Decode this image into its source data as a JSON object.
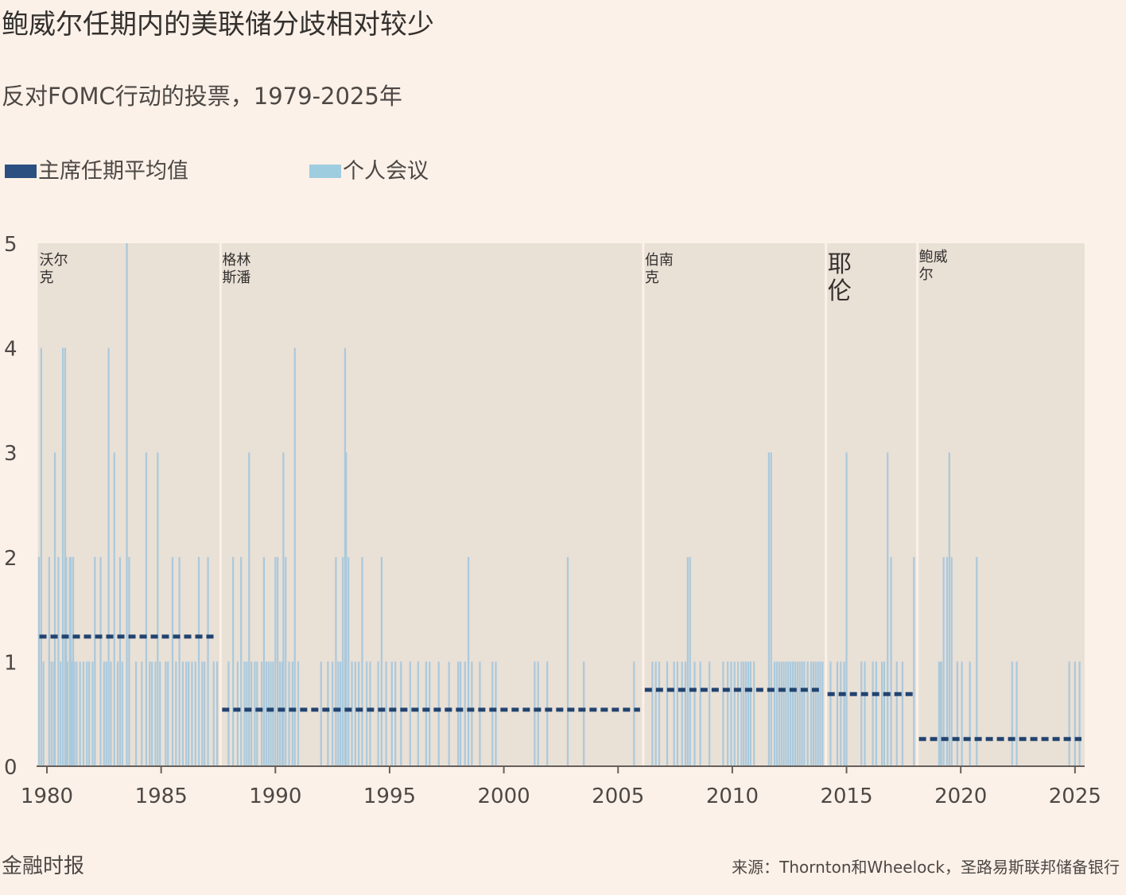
{
  "title": "鲍威尔任期内的美联储分歧相对较少",
  "subtitle": "反对FOMC行动的投票，1979-2025年",
  "legend": {
    "average": "主席任期平均值",
    "individual": "个人会议"
  },
  "footer": {
    "publisher": "金融时报",
    "source": "来源：Thornton和Wheelock，圣路易斯联邦储备银行"
  },
  "colors": {
    "background": "#fcf1e8",
    "plot_band": "#e9e0d6",
    "meeting_bar": "#aac9dc",
    "average_line": "#22436f",
    "legend_meeting": "#9fcde0",
    "legend_average": "#2b4f80"
  },
  "chart_data": {
    "type": "bar",
    "xlabel": "",
    "ylabel": "",
    "xlim": [
      1979.6,
      2025.5
    ],
    "ylim": [
      0,
      5
    ],
    "x_ticks": [
      1980,
      1985,
      1990,
      1995,
      2000,
      2005,
      2010,
      2015,
      2020,
      2025
    ],
    "y_ticks": [
      0,
      1,
      2,
      3,
      4,
      5
    ],
    "grid": false,
    "legend_position": "top-left",
    "chair_terms": [
      {
        "name": "沃尔克",
        "label_lines": [
          "沃尔",
          "克"
        ],
        "start": 1979.6,
        "end": 1987.6,
        "average": 1.24
      },
      {
        "name": "格林斯潘",
        "label_lines": [
          "格林",
          "斯潘"
        ],
        "start": 1987.6,
        "end": 2006.1,
        "average": 0.54
      },
      {
        "name": "伯南克",
        "label_lines": [
          "伯南",
          "克"
        ],
        "start": 2006.1,
        "end": 2014.1,
        "average": 0.73
      },
      {
        "name": "耶伦",
        "label_lines": [
          "耶",
          "伦"
        ],
        "start": 2014.1,
        "end": 2018.1,
        "average": 0.69
      },
      {
        "name": "鲍威尔",
        "label_lines": [
          "鲍威",
          "尔"
        ],
        "start": 2018.1,
        "end": 2025.5,
        "average": 0.26
      }
    ],
    "meetings": [
      [
        1979.65,
        2
      ],
      [
        1979.75,
        4
      ],
      [
        1979.85,
        1
      ],
      [
        1980.1,
        2
      ],
      [
        1980.2,
        1
      ],
      [
        1980.3,
        1
      ],
      [
        1980.35,
        3
      ],
      [
        1980.5,
        2
      ],
      [
        1980.6,
        1
      ],
      [
        1980.7,
        4
      ],
      [
        1980.8,
        4
      ],
      [
        1980.85,
        2
      ],
      [
        1980.9,
        1
      ],
      [
        1981.0,
        2
      ],
      [
        1981.05,
        2
      ],
      [
        1981.1,
        1
      ],
      [
        1981.15,
        2
      ],
      [
        1981.2,
        1
      ],
      [
        1981.3,
        1
      ],
      [
        1981.45,
        1
      ],
      [
        1981.6,
        1
      ],
      [
        1981.75,
        1
      ],
      [
        1981.85,
        1
      ],
      [
        1982.0,
        1
      ],
      [
        1982.1,
        2
      ],
      [
        1982.35,
        2
      ],
      [
        1982.5,
        1
      ],
      [
        1982.6,
        1
      ],
      [
        1982.7,
        4
      ],
      [
        1982.8,
        1
      ],
      [
        1982.95,
        3
      ],
      [
        1983.1,
        1
      ],
      [
        1983.2,
        2
      ],
      [
        1983.3,
        1
      ],
      [
        1983.5,
        5
      ],
      [
        1983.6,
        2
      ],
      [
        1983.9,
        1
      ],
      [
        1984.15,
        1
      ],
      [
        1984.35,
        3
      ],
      [
        1984.5,
        1
      ],
      [
        1984.6,
        1
      ],
      [
        1984.75,
        1
      ],
      [
        1984.85,
        3
      ],
      [
        1984.95,
        1
      ],
      [
        1985.2,
        1
      ],
      [
        1985.3,
        1
      ],
      [
        1985.5,
        2
      ],
      [
        1985.65,
        1
      ],
      [
        1985.8,
        2
      ],
      [
        1985.95,
        1
      ],
      [
        1986.1,
        1
      ],
      [
        1986.2,
        1
      ],
      [
        1986.35,
        1
      ],
      [
        1986.5,
        1
      ],
      [
        1986.65,
        2
      ],
      [
        1986.8,
        1
      ],
      [
        1986.9,
        1
      ],
      [
        1987.05,
        2
      ],
      [
        1987.3,
        1
      ],
      [
        1987.45,
        1
      ],
      [
        1987.95,
        1
      ],
      [
        1988.15,
        2
      ],
      [
        1988.35,
        1
      ],
      [
        1988.5,
        2
      ],
      [
        1988.65,
        1
      ],
      [
        1988.75,
        1
      ],
      [
        1988.85,
        3
      ],
      [
        1988.95,
        1
      ],
      [
        1989.1,
        1
      ],
      [
        1989.2,
        1
      ],
      [
        1989.4,
        1
      ],
      [
        1989.5,
        2
      ],
      [
        1989.6,
        1
      ],
      [
        1989.7,
        1
      ],
      [
        1989.8,
        1
      ],
      [
        1989.9,
        1
      ],
      [
        1990.0,
        2
      ],
      [
        1990.1,
        2
      ],
      [
        1990.2,
        1
      ],
      [
        1990.3,
        1
      ],
      [
        1990.35,
        3
      ],
      [
        1990.45,
        2
      ],
      [
        1990.6,
        1
      ],
      [
        1990.75,
        1
      ],
      [
        1990.85,
        4
      ],
      [
        1991.0,
        1
      ],
      [
        1992.0,
        1
      ],
      [
        1992.3,
        1
      ],
      [
        1992.5,
        1
      ],
      [
        1992.65,
        2
      ],
      [
        1992.75,
        1
      ],
      [
        1992.85,
        1
      ],
      [
        1992.95,
        2
      ],
      [
        1993.05,
        4
      ],
      [
        1993.1,
        3
      ],
      [
        1993.2,
        2
      ],
      [
        1993.35,
        1
      ],
      [
        1993.5,
        1
      ],
      [
        1993.65,
        1
      ],
      [
        1993.8,
        2
      ],
      [
        1994.0,
        1
      ],
      [
        1994.15,
        1
      ],
      [
        1994.5,
        1
      ],
      [
        1994.65,
        2
      ],
      [
        1994.85,
        1
      ],
      [
        1995.1,
        1
      ],
      [
        1995.25,
        1
      ],
      [
        1995.5,
        1
      ],
      [
        1995.9,
        1
      ],
      [
        1996.25,
        1
      ],
      [
        1996.6,
        1
      ],
      [
        1996.75,
        1
      ],
      [
        1997.15,
        1
      ],
      [
        1997.6,
        1
      ],
      [
        1998.0,
        1
      ],
      [
        1998.1,
        1
      ],
      [
        1998.3,
        1
      ],
      [
        1998.45,
        2
      ],
      [
        1998.6,
        1
      ],
      [
        1998.95,
        1
      ],
      [
        1999.5,
        1
      ],
      [
        1999.65,
        1
      ],
      [
        2001.35,
        1
      ],
      [
        2001.5,
        1
      ],
      [
        2001.9,
        1
      ],
      [
        2002.8,
        2
      ],
      [
        2003.5,
        1
      ],
      [
        2005.7,
        1
      ],
      [
        2006.5,
        1
      ],
      [
        2006.65,
        1
      ],
      [
        2006.8,
        1
      ],
      [
        2007.15,
        1
      ],
      [
        2007.45,
        1
      ],
      [
        2007.6,
        1
      ],
      [
        2007.8,
        1
      ],
      [
        2007.95,
        1
      ],
      [
        2008.05,
        2
      ],
      [
        2008.15,
        2
      ],
      [
        2008.35,
        1
      ],
      [
        2008.6,
        1
      ],
      [
        2009.0,
        1
      ],
      [
        2009.6,
        1
      ],
      [
        2009.8,
        1
      ],
      [
        2009.95,
        1
      ],
      [
        2010.1,
        1
      ],
      [
        2010.25,
        1
      ],
      [
        2010.4,
        1
      ],
      [
        2010.5,
        1
      ],
      [
        2010.6,
        1
      ],
      [
        2010.7,
        1
      ],
      [
        2010.8,
        1
      ],
      [
        2010.95,
        1
      ],
      [
        2011.6,
        3
      ],
      [
        2011.7,
        3
      ],
      [
        2011.85,
        1
      ],
      [
        2011.95,
        1
      ],
      [
        2012.05,
        1
      ],
      [
        2012.15,
        1
      ],
      [
        2012.25,
        1
      ],
      [
        2012.35,
        1
      ],
      [
        2012.45,
        1
      ],
      [
        2012.55,
        1
      ],
      [
        2012.65,
        1
      ],
      [
        2012.75,
        1
      ],
      [
        2012.85,
        1
      ],
      [
        2012.95,
        1
      ],
      [
        2013.05,
        1
      ],
      [
        2013.15,
        1
      ],
      [
        2013.3,
        1
      ],
      [
        2013.45,
        1
      ],
      [
        2013.55,
        1
      ],
      [
        2013.65,
        1
      ],
      [
        2013.75,
        1
      ],
      [
        2013.85,
        1
      ],
      [
        2013.95,
        1
      ],
      [
        2014.3,
        1
      ],
      [
        2014.6,
        1
      ],
      [
        2014.75,
        1
      ],
      [
        2014.9,
        1
      ],
      [
        2015.0,
        3
      ],
      [
        2015.65,
        1
      ],
      [
        2015.8,
        1
      ],
      [
        2016.15,
        1
      ],
      [
        2016.3,
        1
      ],
      [
        2016.55,
        1
      ],
      [
        2016.65,
        1
      ],
      [
        2016.8,
        3
      ],
      [
        2016.95,
        2
      ],
      [
        2017.2,
        1
      ],
      [
        2017.45,
        1
      ],
      [
        2017.95,
        2
      ],
      [
        2019.05,
        1
      ],
      [
        2019.1,
        1
      ],
      [
        2019.15,
        1
      ],
      [
        2019.25,
        2
      ],
      [
        2019.4,
        2
      ],
      [
        2019.5,
        3
      ],
      [
        2019.6,
        2
      ],
      [
        2019.85,
        1
      ],
      [
        2020.05,
        1
      ],
      [
        2020.4,
        1
      ],
      [
        2020.7,
        2
      ],
      [
        2022.25,
        1
      ],
      [
        2022.45,
        1
      ],
      [
        2024.75,
        1
      ],
      [
        2025.0,
        1
      ],
      [
        2025.2,
        1
      ]
    ]
  }
}
